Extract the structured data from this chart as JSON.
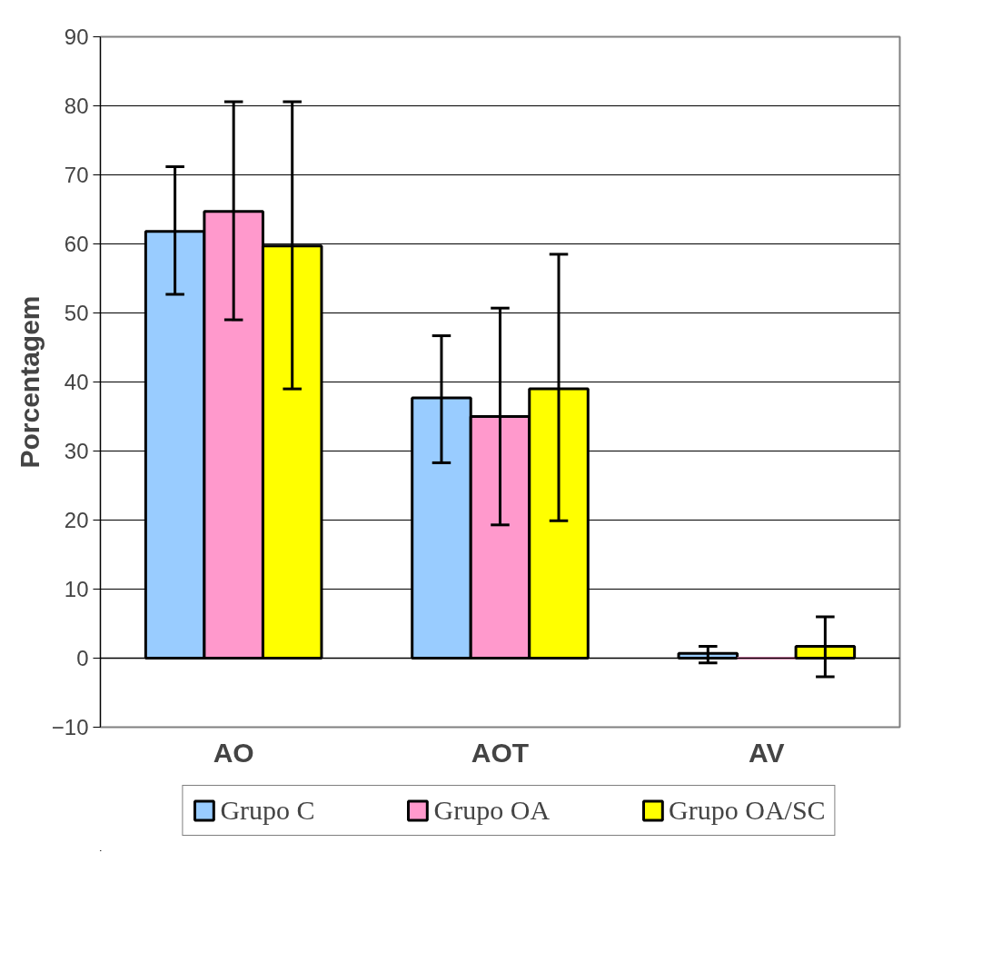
{
  "chart_data": {
    "type": "bar",
    "ylabel": "Porcentagem",
    "categories": [
      "AO",
      "AOT",
      "AV"
    ],
    "series": [
      {
        "name": "Grupo C",
        "color": "#99ccff",
        "values": [
          61.8,
          37.7,
          0.7
        ],
        "errors": [
          [
            52.7,
            71.2
          ],
          [
            28.3,
            46.7
          ],
          [
            -0.7,
            1.7
          ]
        ]
      },
      {
        "name": "Grupo OA",
        "color": "#ff99cc",
        "values": [
          64.7,
          35.0,
          0.0
        ],
        "errors": [
          [
            49.0,
            80.6
          ],
          [
            19.3,
            50.7
          ],
          null
        ]
      },
      {
        "name": "Grupo OA/SC",
        "color": "#ffff00",
        "values": [
          59.7,
          39.0,
          1.7
        ],
        "errors": [
          [
            39.0,
            80.6
          ],
          [
            19.9,
            58.5
          ],
          [
            -2.7,
            6.0
          ]
        ]
      }
    ],
    "ylim": [
      -10,
      90
    ],
    "yticks": [
      -10,
      0,
      10,
      20,
      30,
      40,
      50,
      60,
      70,
      80,
      90
    ],
    "grid": "y",
    "legend": "bottom"
  }
}
